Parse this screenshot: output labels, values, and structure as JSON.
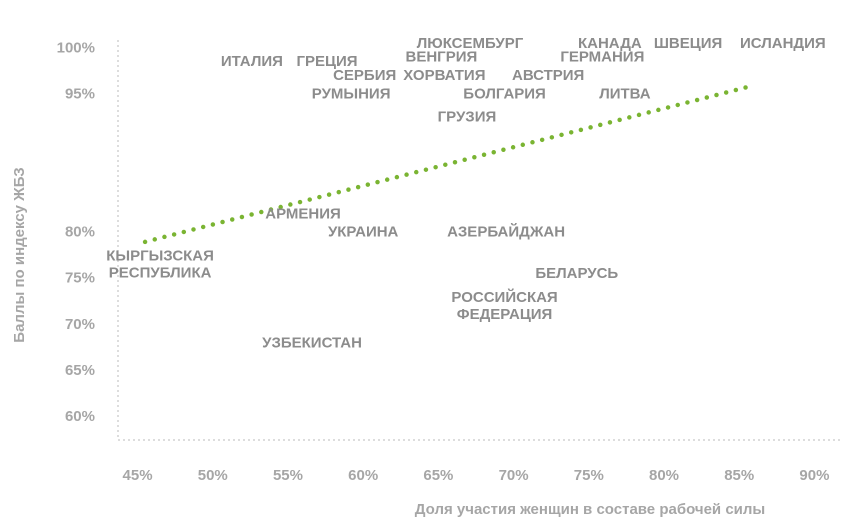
{
  "chart_data": {
    "type": "scatter",
    "x_label": "Доля участия женщин в составе рабочей силы",
    "y_label": "Баллы по индексу ЖБЗ",
    "xlim": [
      43.7,
      91.7
    ],
    "ylim": [
      57.5,
      102
    ],
    "xticks": [
      {
        "value": 45,
        "label": "45%"
      },
      {
        "value": 50,
        "label": "50%"
      },
      {
        "value": 55,
        "label": "55%"
      },
      {
        "value": 60,
        "label": "60%"
      },
      {
        "value": 65,
        "label": "65%"
      },
      {
        "value": 70,
        "label": "70%"
      },
      {
        "value": 75,
        "label": "75%"
      },
      {
        "value": 80,
        "label": "80%"
      },
      {
        "value": 85,
        "label": "85%"
      },
      {
        "value": 90,
        "label": "90%"
      }
    ],
    "yticks": [
      {
        "value": 100,
        "label": "100%"
      },
      {
        "value": 95,
        "label": "95%"
      },
      {
        "value": 80,
        "label": "80%"
      },
      {
        "value": 75,
        "label": "75%"
      },
      {
        "value": 70,
        "label": "70%"
      },
      {
        "value": 65,
        "label": "65%"
      },
      {
        "value": 60,
        "label": "60%"
      }
    ],
    "label_color": "#8c8c8c",
    "points": [
      {
        "name": [
          "КЫРГЫЗСКАЯ",
          "РЕСПУБЛИКА"
        ],
        "x": 46.5,
        "y": 76.5
      },
      {
        "name": [
          "ИТАЛИЯ"
        ],
        "x": 52.6,
        "y": 98.5
      },
      {
        "name": [
          "ГРЕЦИЯ"
        ],
        "x": 57.6,
        "y": 98.5
      },
      {
        "name": [
          "ЛЮКСЕМБУРГ"
        ],
        "x": 67.1,
        "y": 100.5
      },
      {
        "name": [
          "ВЕНГРИЯ"
        ],
        "x": 65.2,
        "y": 99
      },
      {
        "name": [
          "СЕРБИЯ"
        ],
        "x": 60.1,
        "y": 97
      },
      {
        "name": [
          "ХОРВАТИЯ"
        ],
        "x": 65.4,
        "y": 97
      },
      {
        "name": [
          "АВСТРИЯ"
        ],
        "x": 72.3,
        "y": 97
      },
      {
        "name": [
          "КАНАДА"
        ],
        "x": 76.4,
        "y": 100.5
      },
      {
        "name": [
          "ШВЕЦИЯ"
        ],
        "x": 81.6,
        "y": 100.5
      },
      {
        "name": [
          "ИСЛАНДИЯ"
        ],
        "x": 87.9,
        "y": 100.5
      },
      {
        "name": [
          "ГЕРМАНИЯ"
        ],
        "x": 75.9,
        "y": 99
      },
      {
        "name": [
          "РУМЫНИЯ"
        ],
        "x": 59.2,
        "y": 95
      },
      {
        "name": [
          "БОЛГАРИЯ"
        ],
        "x": 69.4,
        "y": 95
      },
      {
        "name": [
          "ЛИТВА"
        ],
        "x": 77.4,
        "y": 95
      },
      {
        "name": [
          "ГРУЗИЯ"
        ],
        "x": 66.9,
        "y": 92.5
      },
      {
        "name": [
          "АРМЕНИЯ"
        ],
        "x": 56,
        "y": 82
      },
      {
        "name": [
          "УКРАИНА"
        ],
        "x": 60,
        "y": 80
      },
      {
        "name": [
          "АЗЕРБАЙДЖАН"
        ],
        "x": 69.5,
        "y": 80
      },
      {
        "name": [
          "БЕЛАРУСЬ"
        ],
        "x": 74.2,
        "y": 75.5
      },
      {
        "name": [
          "РОССИЙСКАЯ",
          "ФЕДЕРАЦИЯ"
        ],
        "x": 69.4,
        "y": 72
      },
      {
        "name": [
          "УЗБЕКИСТАН"
        ],
        "x": 56.6,
        "y": 68
      }
    ],
    "trendline": {
      "color": "#7ab432",
      "x": [
        45.5,
        86
      ],
      "y": [
        79,
        96
      ]
    }
  }
}
